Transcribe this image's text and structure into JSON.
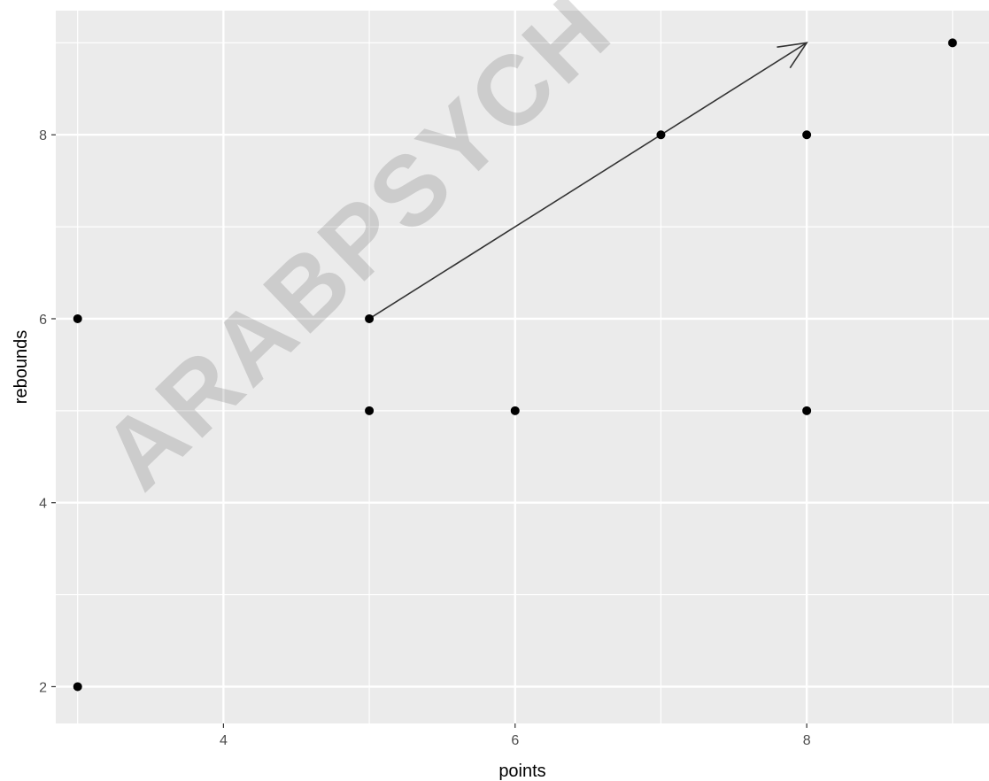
{
  "chart_data": {
    "type": "scatter",
    "xlabel": "points",
    "ylabel": "rebounds",
    "xlim": [
      2.85,
      9.25
    ],
    "ylim": [
      1.6,
      9.35
    ],
    "x_ticks": [
      4,
      6,
      8
    ],
    "y_ticks": [
      2,
      4,
      6,
      8
    ],
    "x_minor": [
      3,
      5,
      7,
      9
    ],
    "y_minor": [
      3,
      5,
      7,
      9
    ],
    "grid": true,
    "points": [
      {
        "x": 3,
        "y": 2
      },
      {
        "x": 3,
        "y": 6
      },
      {
        "x": 5,
        "y": 6
      },
      {
        "x": 5,
        "y": 5
      },
      {
        "x": 6,
        "y": 5
      },
      {
        "x": 7,
        "y": 8
      },
      {
        "x": 8,
        "y": 8
      },
      {
        "x": 8,
        "y": 5
      },
      {
        "x": 9,
        "y": 9
      }
    ],
    "annotation_arrow": {
      "from": {
        "x": 5,
        "y": 6
      },
      "to": {
        "x": 8,
        "y": 9
      }
    }
  },
  "watermark": "ARABPSYCH",
  "colors": {
    "panel": "#ebebeb",
    "grid": "#ffffff",
    "point": "#000000",
    "arrow": "#333333",
    "watermark": "#000000"
  }
}
